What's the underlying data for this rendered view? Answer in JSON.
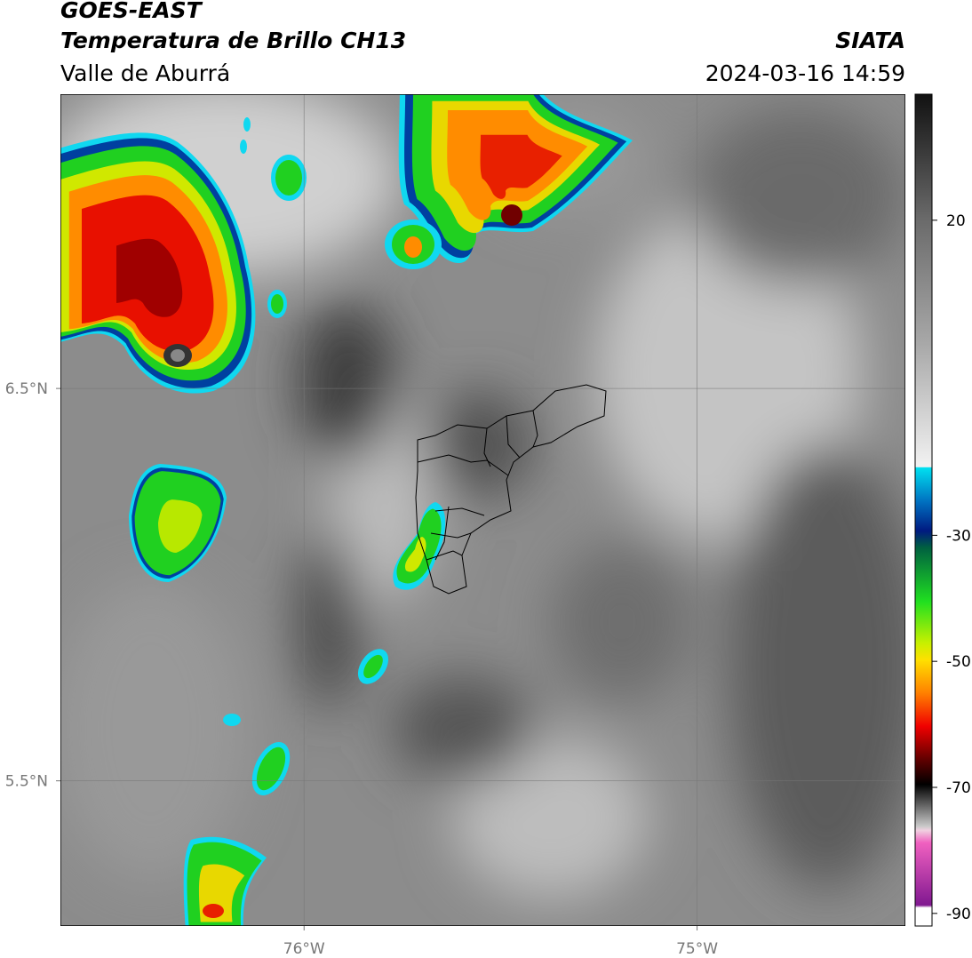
{
  "header": {
    "title": "GOES-EAST",
    "subtitle": "Temperatura de Brillo CH13",
    "region": "Valle de Aburrá",
    "source": "SIATA",
    "datetime": "2024-03-16 14:59"
  },
  "map": {
    "xlim": [
      -76.62,
      -74.47
    ],
    "ylim": [
      5.13,
      7.25
    ],
    "xticks": [
      {
        "value": -76,
        "label": "76°W"
      },
      {
        "value": -75,
        "label": "75°W"
      }
    ],
    "yticks": [
      {
        "value": 6.5,
        "label": "6.5°N"
      },
      {
        "value": 5.5,
        "label": "5.5°N"
      }
    ],
    "grid": true
  },
  "colorbar": {
    "lim": [
      -92,
      40
    ],
    "ticks": [
      20,
      -30,
      -50,
      -70,
      -90
    ]
  }
}
